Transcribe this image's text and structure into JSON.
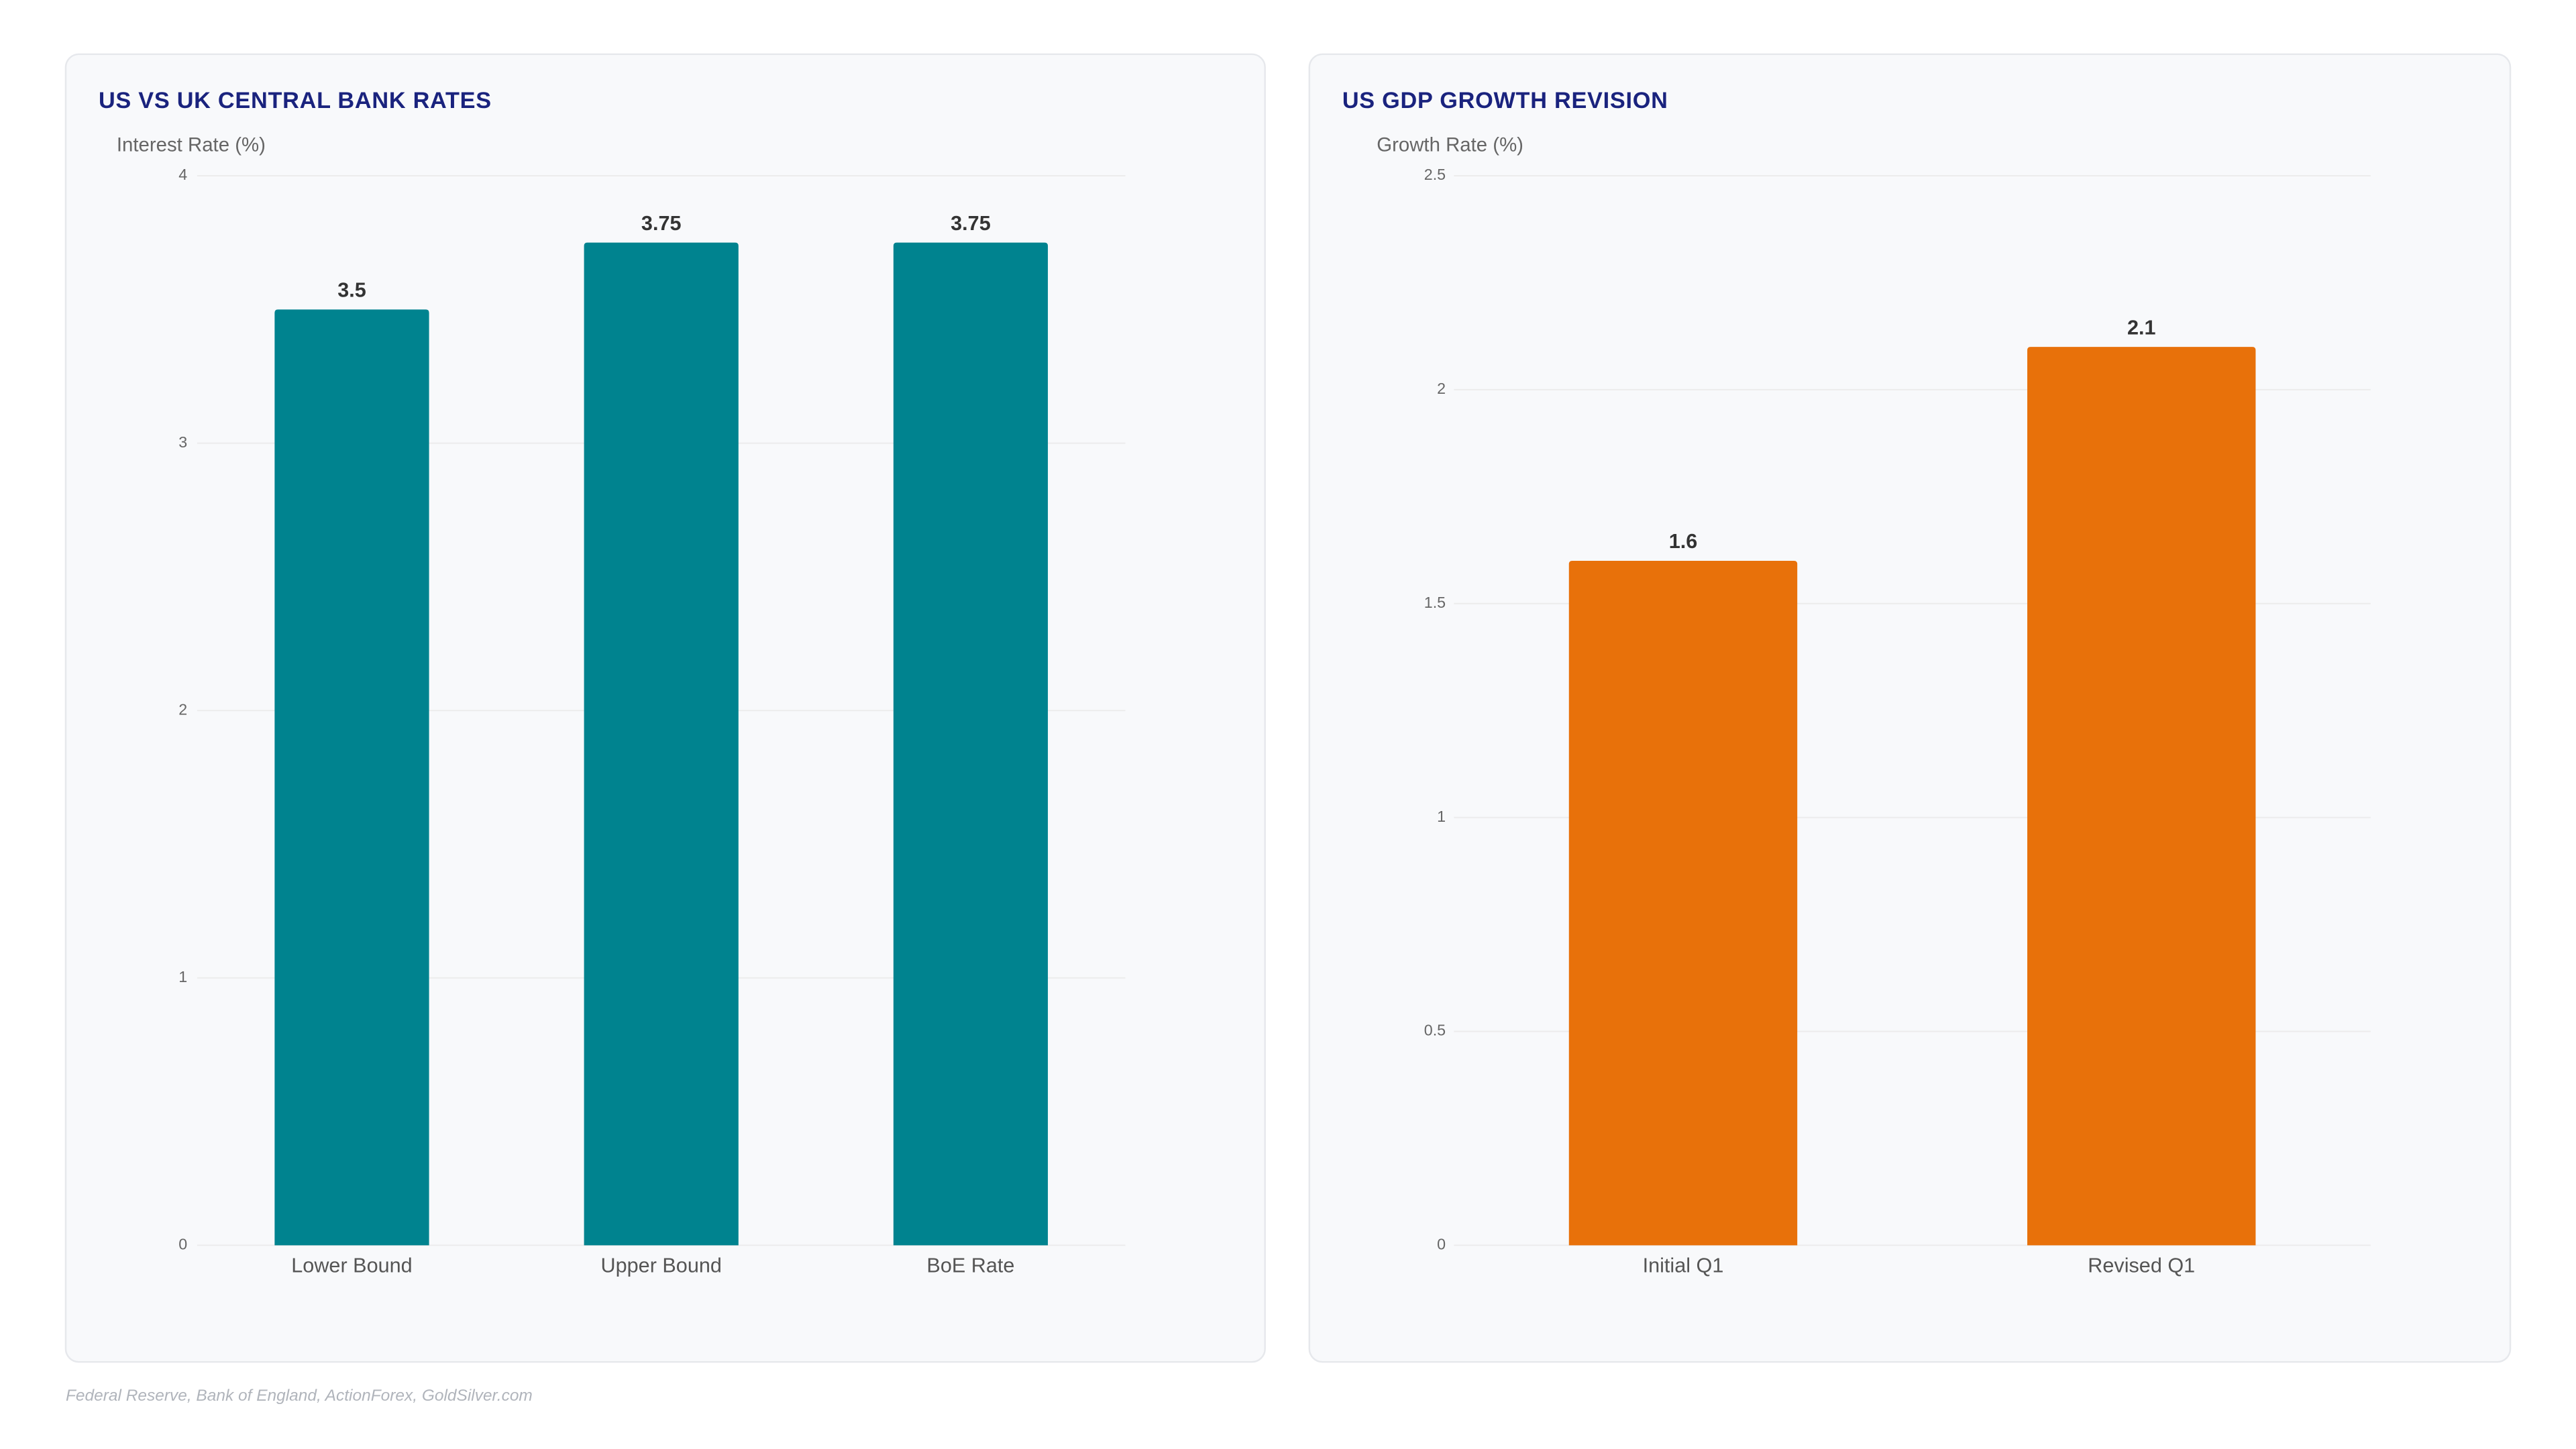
{
  "chart_data": [
    {
      "type": "bar",
      "title": "US VS UK CENTRAL BANK RATES",
      "y_label": "Interest Rate (%)",
      "categories": [
        "Lower Bound",
        "Upper Bound",
        "BoE Rate"
      ],
      "values": [
        3.5,
        3.75,
        3.75
      ],
      "color": "#00838f",
      "ylim": [
        0,
        4
      ],
      "yticks": [
        0,
        1,
        2,
        3,
        4
      ],
      "grid": true
    },
    {
      "type": "bar",
      "title": "US GDP GROWTH REVISION",
      "y_label": "Growth Rate (%)",
      "categories": [
        "Initial Q1",
        "Revised Q1"
      ],
      "values": [
        1.6,
        2.1
      ],
      "color": "#e8710a",
      "ylim": [
        0,
        2.5
      ],
      "yticks": [
        0,
        0.5,
        1,
        1.5,
        2,
        2.5
      ],
      "grid": true
    }
  ],
  "source": "Federal Reserve, Bank of England, ActionForex, GoldSilver.com"
}
